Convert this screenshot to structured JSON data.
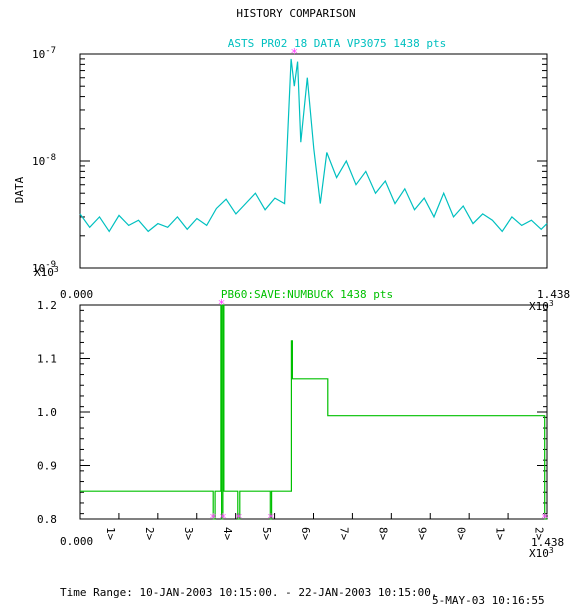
{
  "window": {
    "title": "HISTORY COMPARISON"
  },
  "colors": {
    "series1": "#00c0c0",
    "series2": "#00c000",
    "marker": "#ff40ff",
    "axis": "#000000"
  },
  "chart_data": [
    {
      "type": "line",
      "title": "ASTS PR02 18 DATA VP3075 1438 pts",
      "ylabel": "DATA",
      "yscale": "log",
      "ylim": [
        1e-09,
        1e-07
      ],
      "xlim": [
        0,
        1438
      ],
      "yticks": [
        {
          "value": 1e-07,
          "mantissa": "10",
          "exp": "-7"
        },
        {
          "value": 1e-08,
          "mantissa": "10",
          "exp": "-8"
        },
        {
          "value": 1e-09,
          "mantissa": "10",
          "exp": "-9"
        }
      ],
      "series": [
        {
          "x": [
            0,
            30,
            60,
            90,
            120,
            150,
            180,
            210,
            240,
            270,
            300,
            330,
            360,
            390,
            420,
            450,
            480,
            510,
            540,
            570,
            600,
            630,
            650,
            660,
            670,
            680,
            700,
            720,
            740,
            760,
            790,
            820,
            850,
            880,
            910,
            940,
            970,
            1000,
            1030,
            1060,
            1090,
            1120,
            1150,
            1180,
            1210,
            1240,
            1270,
            1300,
            1330,
            1360,
            1390,
            1420,
            1438
          ],
          "y": [
            3.2e-09,
            2.4e-09,
            3e-09,
            2.2e-09,
            3.1e-09,
            2.5e-09,
            2.8e-09,
            2.2e-09,
            2.6e-09,
            2.4e-09,
            3e-09,
            2.3e-09,
            2.9e-09,
            2.5e-09,
            3.6e-09,
            4.4e-09,
            3.2e-09,
            4e-09,
            5e-09,
            3.5e-09,
            4.5e-09,
            4e-09,
            9e-08,
            5e-08,
            8.5e-08,
            1.5e-08,
            6e-08,
            1.3e-08,
            4e-09,
            1.2e-08,
            7e-09,
            1e-08,
            6e-09,
            8e-09,
            5e-09,
            6.5e-09,
            4e-09,
            5.5e-09,
            3.5e-09,
            4.5e-09,
            3e-09,
            5e-09,
            3e-09,
            3.8e-09,
            2.6e-09,
            3.2e-09,
            2.8e-09,
            2.2e-09,
            3e-09,
            2.5e-09,
            2.8e-09,
            2.3e-09,
            2.6e-09
          ]
        }
      ],
      "markers": [
        {
          "x": 660,
          "y": 1e-07
        }
      ]
    },
    {
      "type": "line",
      "title": "PB60:SAVE:NUMBUCK 1438 pts",
      "ylim": [
        0.8,
        1.2
      ],
      "xlim": [
        0,
        1438
      ],
      "x_multiplier": "X10",
      "x_multiplier_exp": "3",
      "xtick_start": "0.000",
      "xtick_end": "1.438",
      "yticks": [
        "0.8",
        "0.9",
        "1.0",
        "1.1",
        "1.2"
      ],
      "series": [
        {
          "x": [
            0,
            410,
            410,
            416,
            416,
            434,
            434,
            436,
            436,
            440,
            440,
            443,
            443,
            486,
            486,
            492,
            492,
            586,
            586,
            590,
            590,
            651,
            651,
            654,
            654,
            658,
            658,
            763,
            763,
            1431,
            1431,
            1438
          ],
          "y": [
            0.852,
            0.852,
            0.8,
            0.8,
            0.852,
            0.852,
            1.2,
            1.2,
            0.8,
            0.8,
            1.2,
            1.2,
            0.852,
            0.852,
            0.8,
            0.8,
            0.852,
            0.852,
            0.8,
            0.8,
            0.852,
            0.852,
            1.133,
            1.133,
            1.062,
            1.062,
            1.062,
            1.062,
            0.993,
            0.993,
            0.8,
            0.8
          ]
        }
      ],
      "markers": [
        {
          "x": 410,
          "y": 0.8
        },
        {
          "x": 436,
          "y": 1.2
        },
        {
          "x": 440,
          "y": 0.8
        },
        {
          "x": 489,
          "y": 0.8
        },
        {
          "x": 588,
          "y": 0.8
        },
        {
          "x": 1431,
          "y": 0.8
        }
      ],
      "intervals": [
        "1>",
        "2>",
        "3>",
        "4>",
        "5>",
        "6>",
        "7>",
        "8>",
        "9>",
        "0>",
        "1>",
        "2>"
      ]
    }
  ],
  "footer": {
    "time_range": "Time Range: 10-JAN-2003 10:15:00. - 22-JAN-2003 10:15:00.",
    "timestamp": "5-MAY-03 10:16:55"
  }
}
